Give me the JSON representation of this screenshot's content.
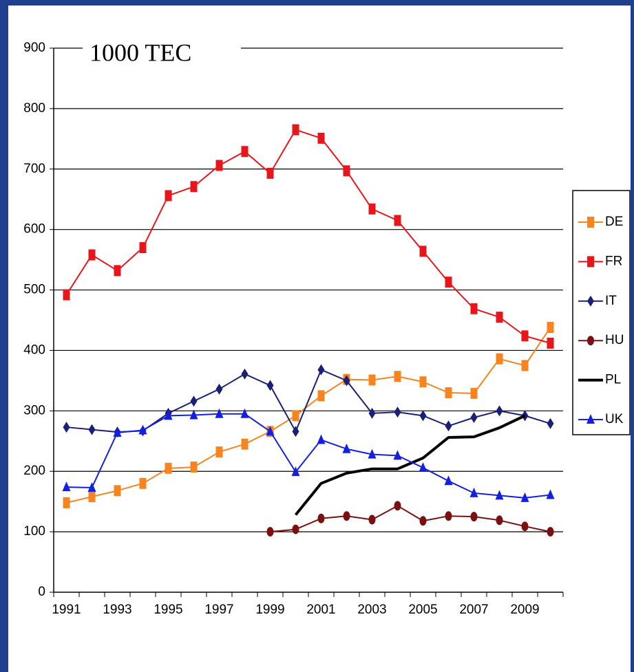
{
  "chart_data": {
    "type": "line",
    "title": "1000 TEC",
    "categories": [
      "1991",
      null,
      "1993",
      null,
      "1995",
      null,
      "1997",
      null,
      "1999",
      null,
      "2001",
      null,
      "2003",
      null,
      "2005",
      null,
      "2007",
      null,
      "2009",
      null
    ],
    "ylim": [
      0,
      900
    ],
    "yticks": [
      0,
      100,
      200,
      300,
      400,
      500,
      600,
      700,
      800,
      900
    ],
    "grid": true,
    "legend": "right",
    "series": [
      {
        "name": "DE",
        "color": "#f7841e",
        "marker": "square",
        "values": [
          148,
          158,
          168,
          180,
          205,
          207,
          232,
          245,
          266,
          292,
          325,
          352,
          351,
          357,
          348,
          330,
          329,
          386,
          375,
          438
        ]
      },
      {
        "name": "FR",
        "color": "#e8161b",
        "marker": "square",
        "values": [
          492,
          558,
          532,
          570,
          656,
          671,
          706,
          729,
          693,
          765,
          751,
          697,
          634,
          615,
          564,
          513,
          469,
          455,
          424,
          412
        ]
      },
      {
        "name": "IT",
        "color": "#1a1f77",
        "marker": "diamond",
        "values": [
          273,
          269,
          265,
          267,
          296,
          316,
          336,
          361,
          342,
          266,
          368,
          350,
          296,
          298,
          292,
          275,
          289,
          300,
          292,
          279
        ]
      },
      {
        "name": "HU",
        "color": "#7b1010",
        "marker": "circle",
        "values": [
          null,
          null,
          null,
          null,
          null,
          null,
          null,
          null,
          100,
          104,
          122,
          126,
          120,
          143,
          118,
          126,
          125,
          119,
          109,
          100
        ]
      },
      {
        "name": "PL",
        "color": "#000000",
        "marker": "none",
        "values": [
          null,
          null,
          null,
          null,
          null,
          null,
          null,
          null,
          null,
          128,
          180,
          197,
          204,
          204,
          222,
          256,
          257,
          272,
          292,
          null
        ]
      },
      {
        "name": "UK",
        "color": "#1420e0",
        "marker": "triangle",
        "values": [
          174,
          173,
          264,
          268,
          292,
          293,
          295,
          295,
          266,
          199,
          252,
          237,
          228,
          226,
          206,
          184,
          164,
          160,
          156,
          161
        ]
      }
    ]
  }
}
